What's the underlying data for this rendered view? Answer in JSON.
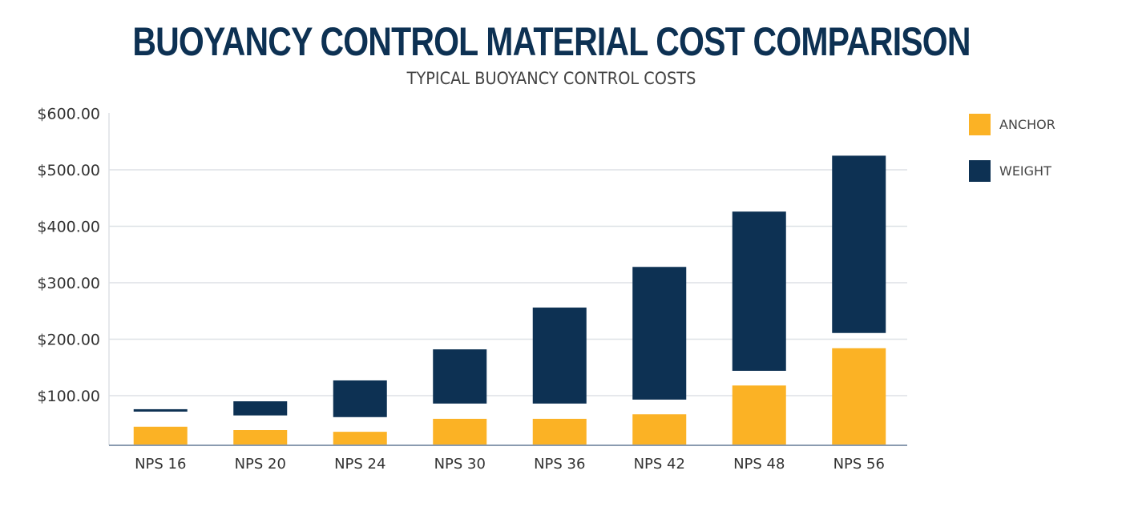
{
  "header": {
    "title": "BUOYANCY CONTROL MATERIAL COST COMPARISON",
    "subtitle": "TYPICAL BUOYANCY CONTROL COSTS"
  },
  "colors": {
    "anchor": "#fbb225",
    "weight": "#0d3153",
    "grid": "#dde1e6",
    "axis": "#8a9bb0"
  },
  "legend": [
    {
      "label": "ANCHOR",
      "color": "#fbb225"
    },
    {
      "label": "WEIGHT",
      "color": "#0d3153"
    }
  ],
  "chart_data": {
    "type": "bar",
    "subtype": "floating-range",
    "title": "BUOYANCY CONTROL MATERIAL COST COMPARISON",
    "subtitle": "TYPICAL BUOYANCY CONTROL COSTS",
    "xlabel": "",
    "ylabel": "",
    "ylim": [
      12,
      600
    ],
    "yticks": [
      100,
      200,
      300,
      400,
      500,
      600
    ],
    "ytick_labels": [
      "$100.00",
      "$200.00",
      "$300.00",
      "$400.00",
      "$500.00",
      "$600.00"
    ],
    "grid": true,
    "legend_position": "right",
    "categories": [
      "NPS 16",
      "NPS 20",
      "NPS 24",
      "NPS 30",
      "NPS 36",
      "NPS 42",
      "NPS 48",
      "NPS 56"
    ],
    "series": [
      {
        "name": "ANCHOR",
        "note": "bar from axis base to value",
        "values": [
          45,
          39,
          36,
          59,
          59,
          67,
          118,
          184
        ]
      },
      {
        "name": "WEIGHT",
        "note": "floating bar [low, high]",
        "ranges": [
          [
            72,
            76
          ],
          [
            65,
            90
          ],
          [
            62,
            127
          ],
          [
            86,
            182
          ],
          [
            86,
            256
          ],
          [
            93,
            328
          ],
          [
            144,
            426
          ],
          [
            211,
            525
          ]
        ]
      }
    ]
  }
}
